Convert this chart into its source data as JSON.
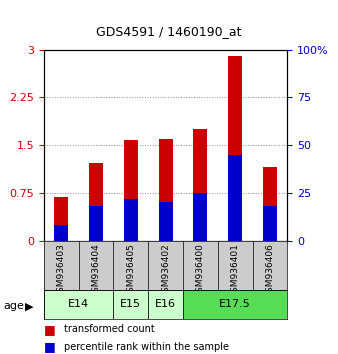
{
  "title": "GDS4591 / 1460190_at",
  "samples": [
    "GSM936403",
    "GSM936404",
    "GSM936405",
    "GSM936402",
    "GSM936400",
    "GSM936401",
    "GSM936406"
  ],
  "transformed_count": [
    0.68,
    1.22,
    1.58,
    1.6,
    1.75,
    2.9,
    1.15
  ],
  "percentile_rank_pct": [
    8,
    18,
    22,
    20,
    25,
    45,
    18
  ],
  "bar_color_red": "#cc0000",
  "bar_color_blue": "#0000cc",
  "bar_width": 0.4,
  "ylim_left": [
    0,
    3
  ],
  "ylim_right": [
    0,
    100
  ],
  "yticks_left": [
    0,
    0.75,
    1.5,
    2.25,
    3
  ],
  "ytick_labels_left": [
    "0",
    "0.75",
    "1.5",
    "2.25",
    "3"
  ],
  "yticks_right": [
    0,
    25,
    50,
    75,
    100
  ],
  "ytick_labels_right": [
    "0",
    "25",
    "50",
    "75",
    "100%"
  ],
  "grid_color": "#888888",
  "plot_bg_color": "#ffffff",
  "legend_red_label": "transformed count",
  "legend_blue_label": "percentile rank within the sample",
  "age_label": "age",
  "sample_bg_color": "#cccccc",
  "age_x": [
    [
      -0.5,
      1.5,
      "E14",
      "#ccffcc"
    ],
    [
      1.5,
      2.5,
      "E15",
      "#ccffcc"
    ],
    [
      2.5,
      3.5,
      "E16",
      "#ccffcc"
    ],
    [
      3.5,
      6.5,
      "E17.5",
      "#55dd55"
    ]
  ]
}
